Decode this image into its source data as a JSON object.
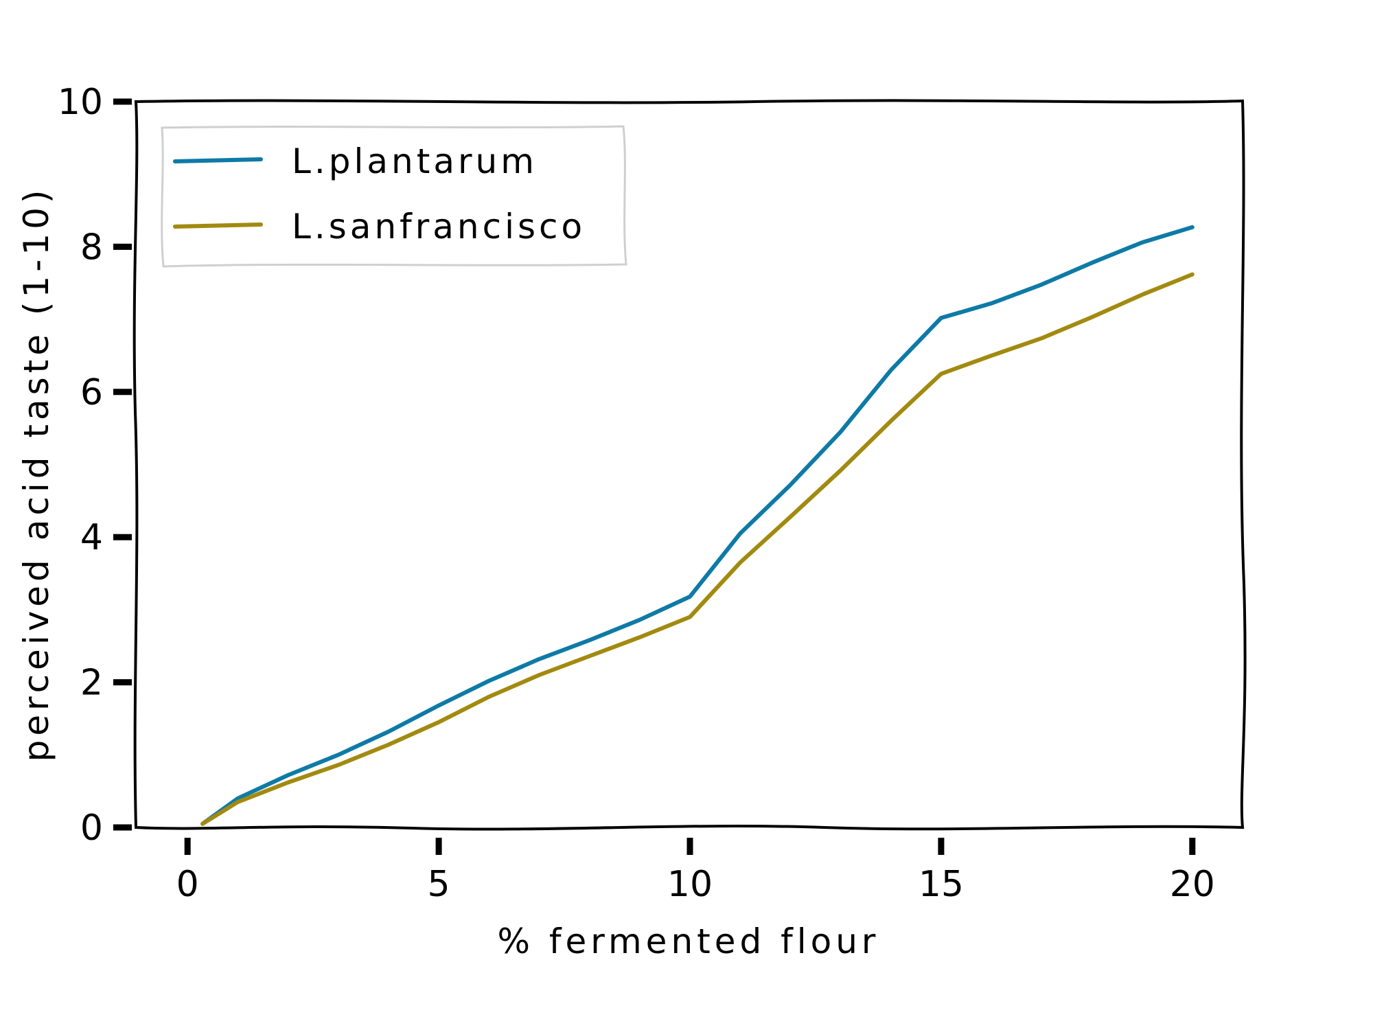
{
  "chart_data": {
    "type": "line",
    "title": "",
    "xlabel": "% fermented flour",
    "ylabel": "perceived acid taste (1-10)",
    "xlim": [
      -1,
      21
    ],
    "ylim": [
      0,
      10
    ],
    "x_ticks": [
      0,
      5,
      10,
      15,
      20
    ],
    "y_ticks": [
      0,
      2,
      4,
      6,
      8,
      10
    ],
    "grid": false,
    "legend_position": "top-left",
    "series": [
      {
        "name": "L.plantarum",
        "color": "#0e7aa6",
        "x": [
          0.3,
          1,
          2,
          3,
          4,
          5,
          6,
          7,
          8,
          9,
          10,
          11,
          12,
          13,
          14,
          15,
          16,
          17,
          18,
          19,
          20
        ],
        "y": [
          0.05,
          0.4,
          0.72,
          1.0,
          1.32,
          1.68,
          2.02,
          2.32,
          2.58,
          2.86,
          3.18,
          4.05,
          4.72,
          5.45,
          6.3,
          7.02,
          7.22,
          7.48,
          7.78,
          8.06,
          8.27
        ]
      },
      {
        "name": "L.sanfrancisco",
        "color": "#a28a10",
        "x": [
          0.3,
          1,
          2,
          3,
          4,
          5,
          6,
          7,
          8,
          9,
          10,
          11,
          12,
          13,
          14,
          15,
          16,
          17,
          18,
          19,
          20
        ],
        "y": [
          0.05,
          0.35,
          0.62,
          0.86,
          1.14,
          1.45,
          1.8,
          2.1,
          2.36,
          2.62,
          2.9,
          3.65,
          4.28,
          4.92,
          5.6,
          6.25,
          6.5,
          6.74,
          7.03,
          7.34,
          7.62
        ]
      }
    ]
  }
}
